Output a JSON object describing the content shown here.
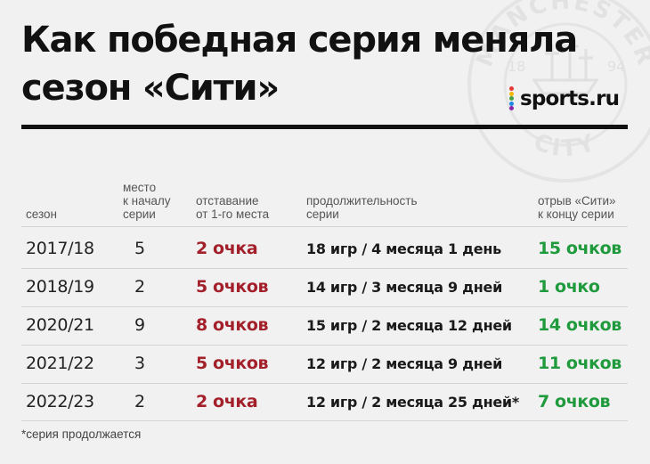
{
  "title_lines": [
    "Как победная серия меняла",
    "сезон «Сити»"
  ],
  "brand": {
    "name": "sports.ru",
    "dot_colors": [
      "#e53935",
      "#f7b500",
      "#43a047",
      "#1e88e5",
      "#8e24aa"
    ]
  },
  "watermark": {
    "top": "MANCHESTER",
    "bottom": "CITY",
    "left_year": "18",
    "right_year": "94"
  },
  "headers": {
    "season": [
      "сезон"
    ],
    "place": [
      "место",
      "к началу",
      "серии"
    ],
    "gap": [
      "отставание",
      "от 1-го места"
    ],
    "duration": [
      "продолжительность",
      "серии"
    ],
    "lead": [
      "отрыв «Сити»",
      "к концу серии"
    ]
  },
  "rows": [
    {
      "season": "2017/18",
      "place": "5",
      "gap": "2 очка",
      "duration": "18 игр / 4 месяца 1 день",
      "lead": "15 очков"
    },
    {
      "season": "2018/19",
      "place": "2",
      "gap": "5 очков",
      "duration": "14 игр / 3 месяца 9 дней",
      "lead": "1 очко"
    },
    {
      "season": "2020/21",
      "place": "9",
      "gap": "8 очков",
      "duration": "15 игр / 2 месяца 12 дней",
      "lead": "14 очков"
    },
    {
      "season": "2021/22",
      "place": "3",
      "gap": "5 очков",
      "duration": "12 игр / 2 месяца 9 дней",
      "lead": "11 очков"
    },
    {
      "season": "2022/23",
      "place": "2",
      "gap": "2 очка",
      "duration": "12 игр / 2 месяца 25 дней*",
      "lead": "7 очков"
    }
  ],
  "footnote": "*серия продолжается",
  "colors": {
    "gap": "#a3202a",
    "lead": "#1f9a3c"
  }
}
